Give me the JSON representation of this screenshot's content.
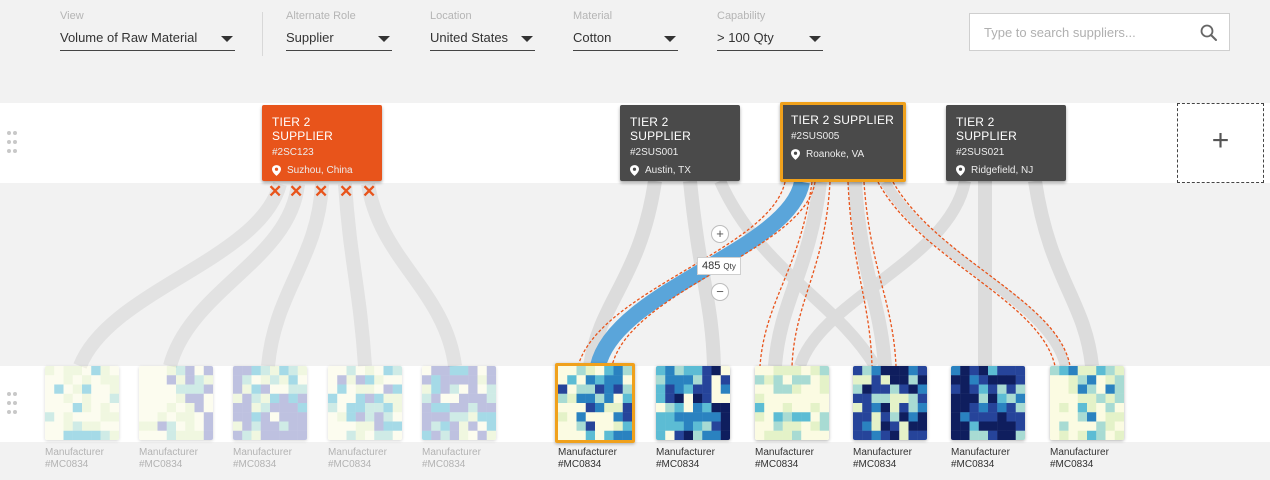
{
  "filters": [
    {
      "label": "View",
      "value": "Volume of Raw Material"
    },
    {
      "label": "Alternate Role",
      "value": "Supplier"
    },
    {
      "label": "Location",
      "value": "United States"
    },
    {
      "label": "Material",
      "value": "Cotton"
    },
    {
      "label": "Capability",
      "value": "> 100 Qty"
    }
  ],
  "search": {
    "placeholder": "Type to search suppliers..."
  },
  "suppliers": [
    {
      "tier": "TIER 2 SUPPLIER",
      "id": "#2SC123",
      "location": "Suzhou, China",
      "state": "excluded"
    },
    {
      "tier": "TIER 2 SUPPLIER",
      "id": "#2SUS001",
      "location": "Austin, TX",
      "state": "normal"
    },
    {
      "tier": "TIER 2 SUPPLIER",
      "id": "#2SUS005",
      "location": "Roanoke, VA",
      "state": "selected"
    },
    {
      "tier": "TIER 2 SUPPLIER",
      "id": "#2SUS021",
      "location": "Ridgefield, NJ",
      "state": "normal"
    }
  ],
  "excluded_mark": "✕",
  "add_label": "+",
  "flow": {
    "quantity": "485",
    "unit": "Qty",
    "plus": "+",
    "minus": "−"
  },
  "manufacturers": [
    {
      "name": "Manufacturer",
      "id": "#MC0834",
      "state": "dim"
    },
    {
      "name": "Manufacturer",
      "id": "#MC0834",
      "state": "dim"
    },
    {
      "name": "Manufacturer",
      "id": "#MC0834",
      "state": "dim"
    },
    {
      "name": "Manufacturer",
      "id": "#MC0834",
      "state": "dim"
    },
    {
      "name": "Manufacturer",
      "id": "#MC0834",
      "state": "dim"
    },
    {
      "name": "Manufacturer",
      "id": "#MC0834",
      "state": "selected"
    },
    {
      "name": "Manufacturer",
      "id": "#MC0834",
      "state": "normal"
    },
    {
      "name": "Manufacturer",
      "id": "#MC0834",
      "state": "normal"
    },
    {
      "name": "Manufacturer",
      "id": "#MC0834",
      "state": "normal"
    },
    {
      "name": "Manufacturer",
      "id": "#MC0834",
      "state": "normal"
    },
    {
      "name": "Manufacturer",
      "id": "#MC0834",
      "state": "normal"
    }
  ],
  "colors": {
    "accent_orange": "#e8541b",
    "selected_border": "#f0a11c",
    "card_dark": "#4a4a4a",
    "flow_highlight": "#5aa5da",
    "flow_default": "#dcdcdc",
    "heatmap_scale": [
      "#fbfbe2",
      "#e4f2c8",
      "#a8dbd3",
      "#5cbcd4",
      "#2a82c0",
      "#26449a",
      "#0f1e5e",
      "#8a8fc8"
    ]
  }
}
